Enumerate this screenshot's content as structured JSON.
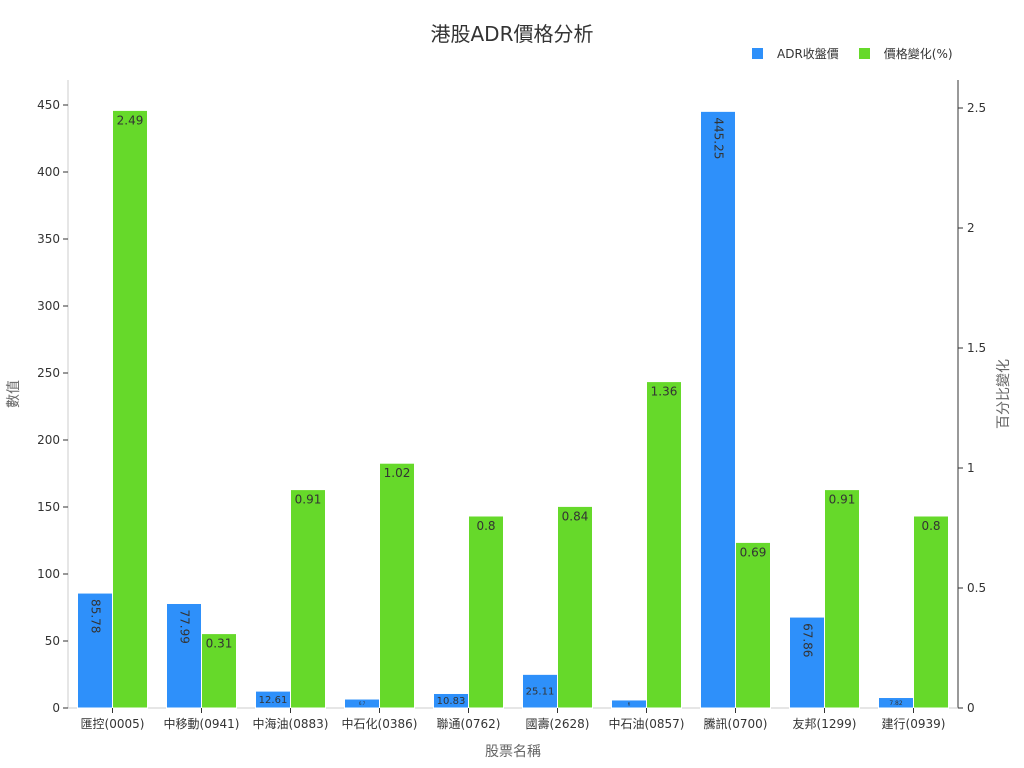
{
  "chart_data": {
    "type": "bar",
    "title": "港股ADR價格分析",
    "xlabel": "股票名稱",
    "ylabel": "數值",
    "y2label": "百分比變化",
    "categories": [
      "匯控(0005)",
      "中移動(0941)",
      "中海油(0883)",
      "中石化(0386)",
      "聯通(0762)",
      "國壽(2628)",
      "中石油(0857)",
      "騰訊(0700)",
      "友邦(1299)",
      "建行(0939)"
    ],
    "series": [
      {
        "name": "ADR收盤價",
        "axis": "left",
        "color": "#2e90fa",
        "values": [
          85.78,
          77.99,
          12.61,
          6.7,
          10.83,
          25.11,
          6.0,
          445.25,
          67.86,
          7.82
        ]
      },
      {
        "name": "價格變化(%)",
        "axis": "right",
        "color": "#66d92a",
        "values": [
          2.49,
          0.31,
          0.91,
          1.02,
          0.8,
          0.84,
          1.36,
          0.69,
          0.91,
          0.8
        ]
      }
    ],
    "ylim": [
      0,
      468
    ],
    "y2lim": [
      0,
      2.62
    ],
    "yticks": [
      0,
      50,
      100,
      150,
      200,
      250,
      300,
      350,
      400,
      450
    ],
    "y2ticks": [
      0,
      0.5,
      1,
      1.5,
      2,
      2.5
    ],
    "grid": false,
    "legend_position": "top-right"
  },
  "labels": {
    "title": "港股ADR價格分析",
    "legend": [
      "ADR收盤價",
      "價格變化(%)"
    ],
    "xlabel": "股票名稱",
    "ylabel": "數值",
    "y2label": "百分比變化"
  }
}
